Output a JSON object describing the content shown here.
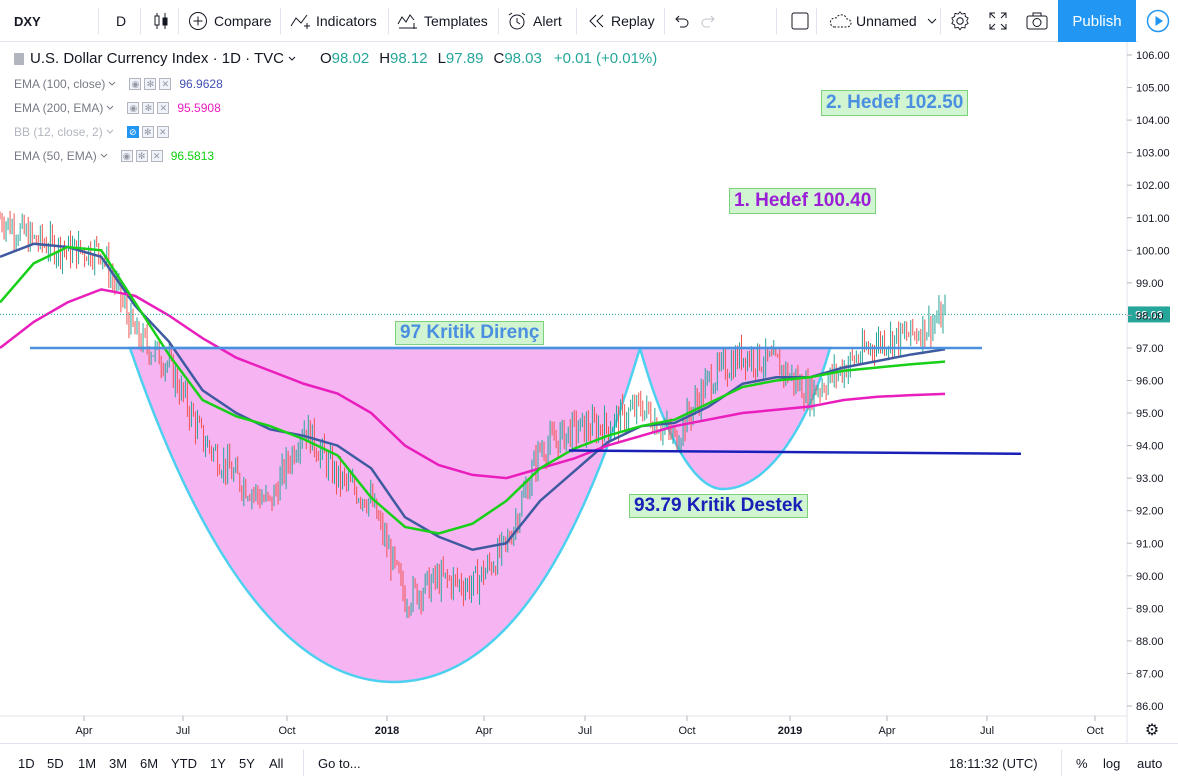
{
  "toolbar": {
    "symbol": "DXY",
    "interval": "D",
    "compare": "Compare",
    "indicators": "Indicators",
    "templates": "Templates",
    "alert": "Alert",
    "replay": "Replay",
    "layout_name": "Unnamed",
    "publish": "Publish"
  },
  "header": {
    "title": "U.S. Dollar Currency Index · 1D · TVC",
    "o_label": "O",
    "o": "98.02",
    "h_label": "H",
    "h": "98.12",
    "l_label": "L",
    "l": "97.89",
    "c_label": "C",
    "c": "98.03",
    "change": "+0.01 (+0.01%)"
  },
  "indicators": [
    {
      "name": "EMA (100, close)",
      "value": "96.9628",
      "color": "#3f51b5"
    },
    {
      "name": "EMA (200, EMA)",
      "value": "95.5908",
      "color": "#e91ebd"
    },
    {
      "name": "BB (12, close, 2)",
      "value": "",
      "color": "#2196f3"
    },
    {
      "name": "EMA (50, EMA)",
      "value": "96.5813",
      "color": "#0fd00f"
    }
  ],
  "annotations": {
    "target2": "2. Hedef 102.50",
    "target1": "1. Hedef 100.40",
    "resistance": "97 Kritik Direnç",
    "support": "93.79 Kritik Destek"
  },
  "price_axis": {
    "ticks": [
      "106.00",
      "105.00",
      "104.00",
      "103.00",
      "102.00",
      "101.00",
      "100.00",
      "99.00",
      "98.00",
      "97.00",
      "96.00",
      "95.00",
      "94.00",
      "93.00",
      "92.00",
      "91.00",
      "90.00",
      "89.00",
      "88.00",
      "87.00",
      "86.00"
    ],
    "last_price": "98.03"
  },
  "time_axis": {
    "ticks": [
      "Apr",
      "Jul",
      "Oct",
      "2018",
      "Apr",
      "Jul",
      "Oct",
      "2019",
      "Apr",
      "Jul",
      "Oct"
    ]
  },
  "bottombar": {
    "ranges": [
      "1D",
      "5D",
      "1M",
      "3M",
      "6M",
      "YTD",
      "1Y",
      "5Y",
      "All"
    ],
    "goto": "Go to...",
    "time": "18:11:32 (UTC)",
    "percent": "%",
    "log": "log",
    "auto": "auto"
  },
  "chart_data": {
    "type": "line",
    "title": "U.S. Dollar Currency Index · 1D · TVC",
    "ylim": [
      85.6,
      106.4
    ],
    "x": [
      "2017-01",
      "2017-02",
      "2017-03",
      "2017-04",
      "2017-05",
      "2017-06",
      "2017-07",
      "2017-08",
      "2017-09",
      "2017-10",
      "2017-11",
      "2017-12",
      "2018-01",
      "2018-02",
      "2018-03",
      "2018-04",
      "2018-05",
      "2018-06",
      "2018-07",
      "2018-08",
      "2018-09",
      "2018-10",
      "2018-11",
      "2018-12",
      "2019-01",
      "2019-02",
      "2019-03",
      "2019-04",
      "2019-05"
    ],
    "series": [
      {
        "name": "DXY",
        "values": [
          101.0,
          100.3,
          100.0,
          100.0,
          97.4,
          96.5,
          94.2,
          93.0,
          92.2,
          94.6,
          93.0,
          92.3,
          89.3,
          89.9,
          89.7,
          90.9,
          93.9,
          94.5,
          94.6,
          95.2,
          94.2,
          96.0,
          96.8,
          96.5,
          95.6,
          96.4,
          97.2,
          97.4,
          98.0
        ]
      },
      {
        "name": "EMA (100, close)",
        "values": [
          99.8,
          100.2,
          100.1,
          99.8,
          98.3,
          97.2,
          95.7,
          95.0,
          94.5,
          94.3,
          94.0,
          93.3,
          91.8,
          91.2,
          90.8,
          91.0,
          92.3,
          93.2,
          94.1,
          94.6,
          94.7,
          95.2,
          95.9,
          96.1,
          96.1,
          96.4,
          96.6,
          96.8,
          96.96
        ]
      },
      {
        "name": "EMA (200, EMA)",
        "values": [
          97.0,
          97.8,
          98.4,
          98.8,
          98.6,
          98.0,
          97.3,
          96.7,
          96.3,
          95.9,
          95.6,
          95.0,
          94.0,
          93.4,
          93.1,
          93.0,
          93.3,
          93.6,
          94.0,
          94.3,
          94.6,
          94.8,
          95.0,
          95.1,
          95.2,
          95.4,
          95.5,
          95.55,
          95.59
        ]
      },
      {
        "name": "EMA (50, EMA)",
        "values": [
          98.4,
          99.6,
          100.1,
          100.0,
          98.4,
          96.8,
          95.4,
          94.9,
          94.6,
          94.2,
          93.7,
          92.4,
          91.5,
          91.3,
          91.6,
          92.3,
          93.3,
          93.9,
          94.3,
          94.6,
          94.8,
          95.3,
          95.8,
          96.0,
          96.1,
          96.3,
          96.4,
          96.5,
          96.58
        ]
      }
    ],
    "lines": [
      {
        "name": "97 Kritik Direnç",
        "value": 97.0
      },
      {
        "name": "93.79 Kritik Destek",
        "value": 93.79
      }
    ]
  }
}
